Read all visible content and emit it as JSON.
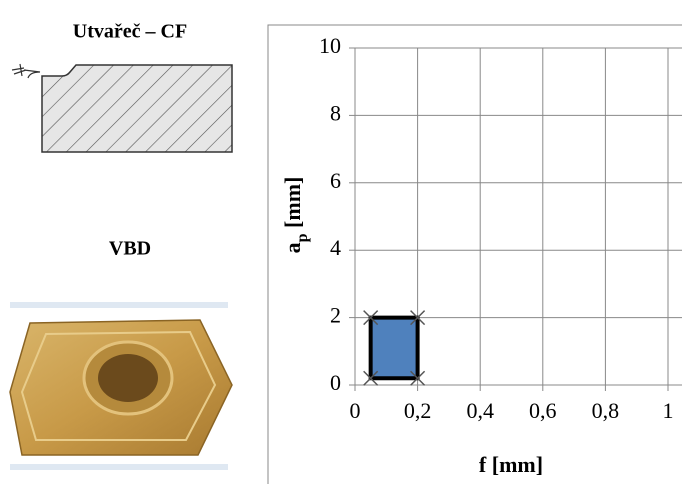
{
  "panel": {
    "title": "Utvařeč – CF",
    "label": "VBD"
  },
  "chart_data": {
    "type": "polygon",
    "xlabel": "f [mm]",
    "ylabel": [
      "a",
      "p",
      " [mm]"
    ],
    "series": [
      {
        "x": [
          0.05,
          0.2,
          0.2,
          0.05
        ],
        "values": [
          0.2,
          0.2,
          2,
          2
        ],
        "color": "#4f81bd"
      }
    ],
    "xlim": [
      0,
      1
    ],
    "xticks": [
      0,
      {
        "value": 0.2,
        "label": "0,2"
      },
      {
        "value": 0.4,
        "label": "0,4"
      },
      {
        "value": 0.6,
        "label": "0,6"
      },
      {
        "value": 0.8,
        "label": "0,8"
      },
      1
    ],
    "ylim": [
      0,
      10
    ],
    "yticks": [
      0,
      2,
      4,
      6,
      8,
      10
    ],
    "grid": true
  }
}
